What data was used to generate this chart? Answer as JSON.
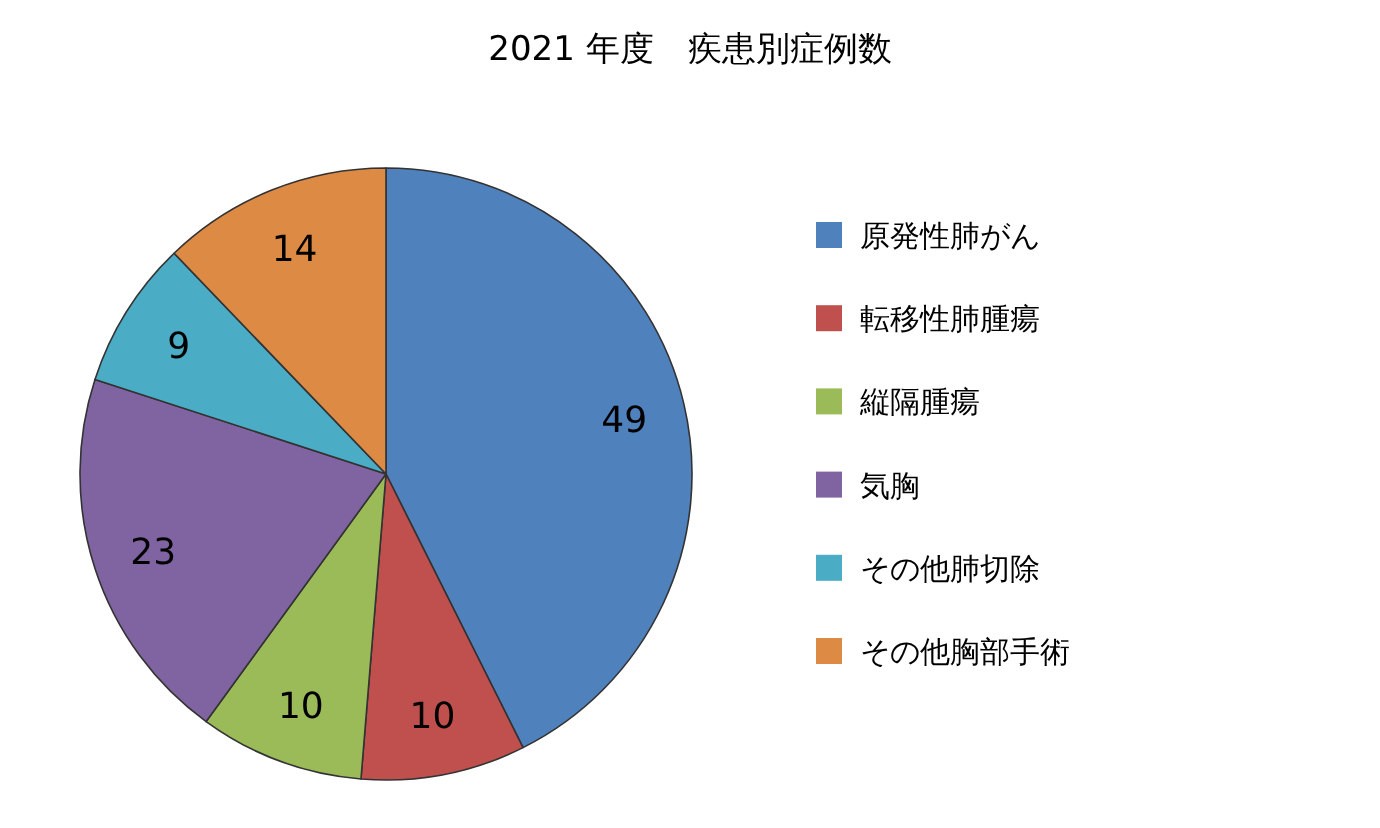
{
  "chart_data": {
    "type": "pie",
    "title": "2021 年度　疾患別症例数",
    "categories": [
      "原発性肺がん",
      "転移性肺腫瘍",
      "縦隔腫瘍",
      "気胸",
      "その他肺切除",
      "その他胸部手術"
    ],
    "values": [
      49,
      10,
      10,
      23,
      9,
      14
    ],
    "colors": [
      "#4f81bd",
      "#c0504d",
      "#9bbb59",
      "#8064a2",
      "#4bacc6",
      "#dd8a45"
    ],
    "data_labels": true,
    "legend": "right"
  }
}
